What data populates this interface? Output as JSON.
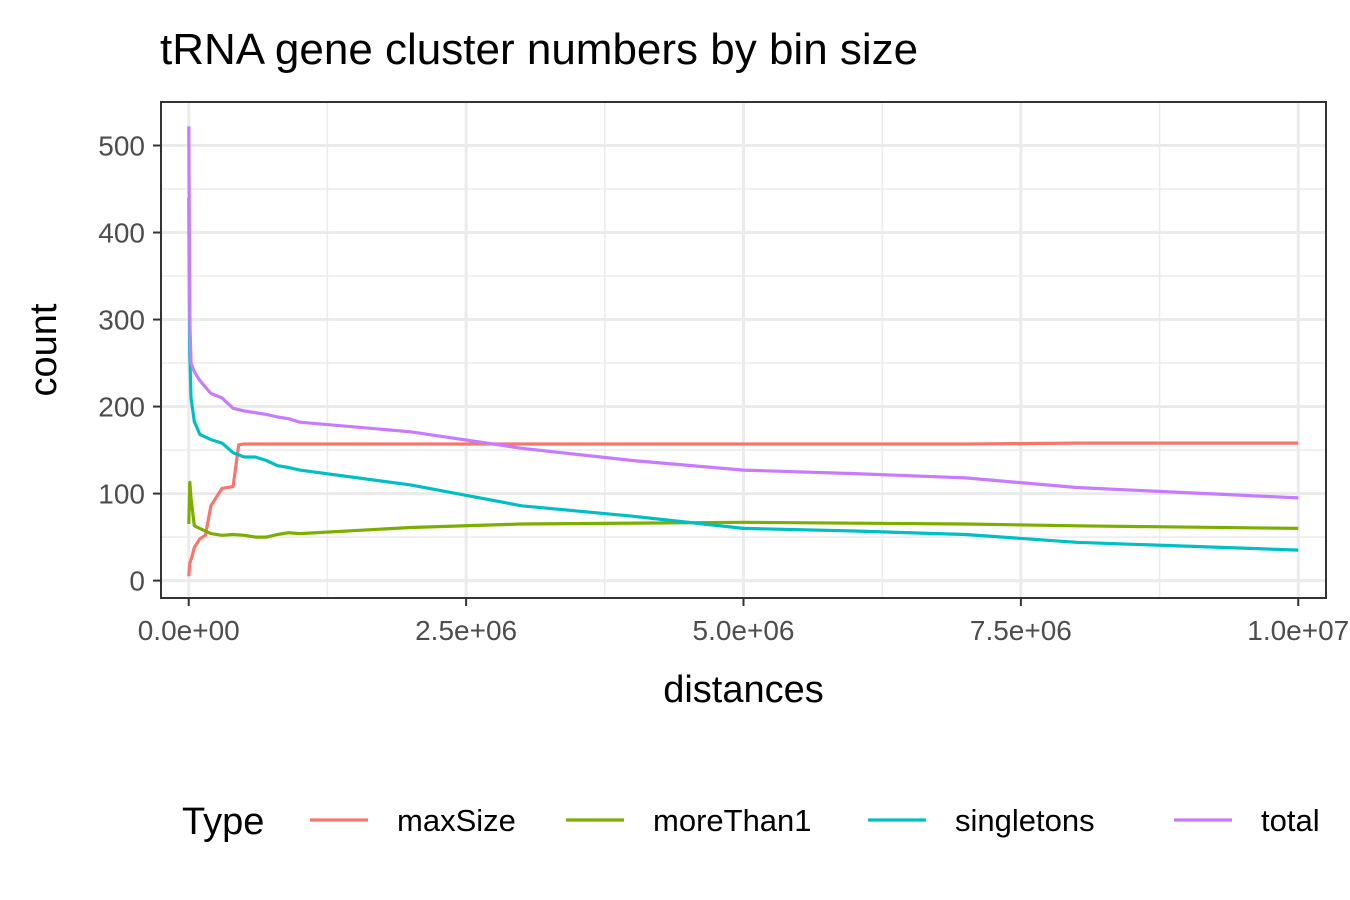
{
  "chart_data": {
    "type": "line",
    "title": "tRNA gene cluster numbers by bin size",
    "xlabel": "distances",
    "ylabel": "count",
    "xlim": [
      -250000,
      10250000
    ],
    "ylim": [
      -20,
      550
    ],
    "x_major_ticks": [
      0,
      2500000,
      5000000,
      7500000,
      10000000
    ],
    "x_tick_labels": [
      "0.0e+00",
      "2.5e+06",
      "5.0e+06",
      "7.5e+06",
      "1.0e+07"
    ],
    "x_minor_ticks": [
      1250000,
      3750000,
      6250000,
      8750000
    ],
    "y_major_ticks": [
      0,
      100,
      200,
      300,
      400,
      500
    ],
    "y_tick_labels": [
      "0",
      "100",
      "200",
      "300",
      "400",
      "500"
    ],
    "y_minor_ticks": [
      50,
      150,
      250,
      350,
      450
    ],
    "grid": true,
    "legend": {
      "title": "Type",
      "position": "bottom",
      "entries": [
        "maxSize",
        "moreThan1",
        "singletons",
        "total"
      ]
    },
    "series": [
      {
        "name": "maxSize",
        "color": "#F8766D",
        "x": [
          1000,
          10000,
          30000,
          50000,
          100000,
          150000,
          200000,
          300000,
          400000,
          450000,
          500000,
          1000000,
          2000000,
          3000000,
          5000000,
          7000000,
          8000000,
          10000000
        ],
        "y": [
          5,
          20,
          28,
          38,
          48,
          52,
          86,
          106,
          108,
          156,
          157,
          157,
          157,
          157,
          157,
          157,
          158,
          158
        ]
      },
      {
        "name": "moreThan1",
        "color": "#7CAE00",
        "x": [
          1000,
          10000,
          20000,
          50000,
          100000,
          200000,
          300000,
          400000,
          500000,
          600000,
          700000,
          800000,
          900000,
          1000000,
          2000000,
          3000000,
          5000000,
          7000000,
          8000000,
          10000000
        ],
        "y": [
          65,
          113,
          95,
          63,
          60,
          54,
          52,
          53,
          52,
          50,
          50,
          53,
          55,
          54,
          61,
          65,
          67,
          65,
          63,
          60
        ]
      },
      {
        "name": "singletons",
        "color": "#00BFC4",
        "x": [
          1000,
          10000,
          20000,
          50000,
          100000,
          200000,
          300000,
          400000,
          500000,
          600000,
          700000,
          800000,
          900000,
          1000000,
          2000000,
          3000000,
          4000000,
          5000000,
          6000000,
          7000000,
          8000000,
          10000000
        ],
        "y": [
          440,
          260,
          210,
          183,
          168,
          162,
          158,
          147,
          142,
          142,
          138,
          132,
          130,
          127,
          110,
          86,
          74,
          60,
          57,
          53,
          44,
          35
        ]
      },
      {
        "name": "total",
        "color": "#C77CFF",
        "x": [
          1000,
          10000,
          20000,
          50000,
          100000,
          200000,
          300000,
          400000,
          500000,
          600000,
          700000,
          800000,
          900000,
          1000000,
          2000000,
          3000000,
          4000000,
          5000000,
          6000000,
          7000000,
          8000000,
          10000000
        ],
        "y": [
          522,
          300,
          250,
          240,
          230,
          215,
          210,
          198,
          195,
          193,
          191,
          188,
          186,
          182,
          171,
          152,
          138,
          127,
          123,
          118,
          107,
          95
        ]
      }
    ]
  }
}
